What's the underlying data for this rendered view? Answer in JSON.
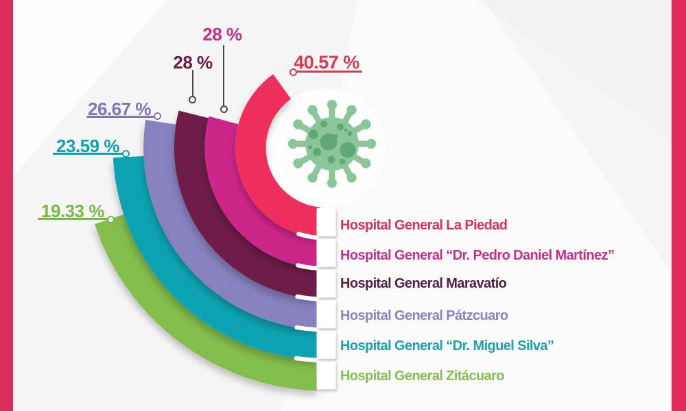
{
  "canvas": {
    "background": "#f6f5f6",
    "left_bar_color": "#dd2b5c",
    "right_bar_color": "#e02a5c"
  },
  "chart_data": {
    "type": "radial-bar",
    "title": "",
    "unit": "%",
    "scale": {
      "full_circle_percent": 100,
      "degrees_per_percent": 3.6
    },
    "legend_position": "right",
    "leader_line_color": "#514049",
    "icon": {
      "name": "coronavirus-icon",
      "color": "#8cc59a",
      "spot_color": "#61a974"
    },
    "series": [
      {
        "label": "Hospital General La Piedad",
        "value": 40.57,
        "value_label": "40.57 %",
        "ring_color": "#ee2f5d",
        "value_color": "#d63a55",
        "label_color": "#d43058",
        "leader": "self"
      },
      {
        "label": "Hospital General “Dr. Pedro Daniel Martínez”",
        "value": 28,
        "value_label": "28 %",
        "ring_color": "#cd2589",
        "value_color": "#c42e8a",
        "label_color": "#c42e8a",
        "leader": "gray"
      },
      {
        "label": "Hospital General Maravatío",
        "value": 28,
        "value_label": "28 %",
        "ring_color": "#6e1f48",
        "value_color": "#67203f",
        "label_color": "#532040",
        "leader": "gray"
      },
      {
        "label": "Hospital General Pátzcuaro",
        "value": 26.67,
        "value_label": "26.67 %",
        "ring_color": "#8781bf",
        "value_color": "#7d77b8",
        "label_color": "#8983c3",
        "leader": "self"
      },
      {
        "label": "Hospital General “Dr. Miguel Silva”",
        "value": 23.59,
        "value_label": "23.59 %",
        "ring_color": "#0fa3b2",
        "value_color": "#13a0af",
        "label_color": "#1d9fac",
        "leader": "self"
      },
      {
        "label": "Hospital General Zitácuaro",
        "value": 19.33,
        "value_label": "19.33 %",
        "ring_color": "#83bd4b",
        "value_color": "#7cb845",
        "label_color": "#84bd51",
        "leader": "self"
      }
    ]
  }
}
